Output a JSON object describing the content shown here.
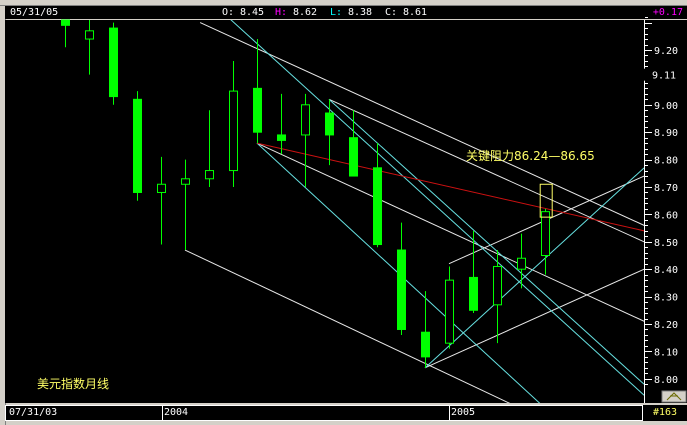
{
  "header": {
    "date": "05/31/05",
    "open_label": "O:",
    "open": "8.45",
    "high_label": "H:",
    "high": "8.62",
    "low_label": "L:",
    "low": "8.38",
    "close_label": "C:",
    "close": "8.61",
    "change": "+0.17"
  },
  "footer": {
    "start_date": "07/31/03",
    "year_labels": [
      "2004",
      "2005"
    ],
    "bar_count": "#163"
  },
  "colors": {
    "background": "#000000",
    "candle": "#00ff00",
    "trendline_white": "#e8e8e8",
    "trendline_cyan": "#66e0e0",
    "trendline_red": "#cc1111",
    "annotation": "#ffff66",
    "high_label": "#ff00ff",
    "low_label": "#00ffff",
    "change": "#ff00ff"
  },
  "chart_data": {
    "type": "candlestick",
    "title": "美元指数月线",
    "annotation": "关键阻力86.24—86.65",
    "y_axis_side": "right",
    "ylim": [
      7.98,
      9.31
    ],
    "y_ticks": [
      "9.20",
      "9.00",
      "8.90",
      "8.80",
      "8.70",
      "8.60",
      "8.50",
      "8.40",
      "8.30",
      "8.20",
      "8.10",
      "8.00"
    ],
    "y_tick_values": [
      9.2,
      9.0,
      8.9,
      8.8,
      8.7,
      8.6,
      8.5,
      8.4,
      8.3,
      8.2,
      8.1,
      8.0
    ],
    "current_marker": "9.11",
    "current_marker_value": 9.11,
    "grid": false,
    "candles": [
      {
        "o": 9.31,
        "h": 9.33,
        "l": 9.21,
        "c": 9.29
      },
      {
        "o": 9.24,
        "h": 9.31,
        "l": 9.11,
        "c": 9.27
      },
      {
        "o": 9.28,
        "h": 9.3,
        "l": 9.0,
        "c": 9.03
      },
      {
        "o": 9.02,
        "h": 9.05,
        "l": 8.65,
        "c": 8.68
      },
      {
        "o": 8.68,
        "h": 8.81,
        "l": 8.49,
        "c": 8.71
      },
      {
        "o": 8.71,
        "h": 8.8,
        "l": 8.47,
        "c": 8.73
      },
      {
        "o": 8.73,
        "h": 8.98,
        "l": 8.7,
        "c": 8.76
      },
      {
        "o": 8.76,
        "h": 9.16,
        "l": 8.7,
        "c": 9.05
      },
      {
        "o": 9.06,
        "h": 9.24,
        "l": 8.86,
        "c": 8.9
      },
      {
        "o": 8.89,
        "h": 9.04,
        "l": 8.82,
        "c": 8.87
      },
      {
        "o": 8.89,
        "h": 9.04,
        "l": 8.7,
        "c": 9.0
      },
      {
        "o": 8.97,
        "h": 9.02,
        "l": 8.78,
        "c": 8.89
      },
      {
        "o": 8.88,
        "h": 8.98,
        "l": 8.74,
        "c": 8.74
      },
      {
        "o": 8.77,
        "h": 8.86,
        "l": 8.48,
        "c": 8.49
      },
      {
        "o": 8.47,
        "h": 8.57,
        "l": 8.16,
        "c": 8.18
      },
      {
        "o": 8.17,
        "h": 8.32,
        "l": 8.04,
        "c": 8.08
      },
      {
        "o": 8.13,
        "h": 8.41,
        "l": 8.11,
        "c": 8.36
      },
      {
        "o": 8.37,
        "h": 8.54,
        "l": 8.24,
        "c": 8.25
      },
      {
        "o": 8.27,
        "h": 8.47,
        "l": 8.13,
        "c": 8.41
      },
      {
        "o": 8.4,
        "h": 8.53,
        "l": 8.33,
        "c": 8.44
      },
      {
        "o": 8.45,
        "h": 8.62,
        "l": 8.38,
        "c": 8.61
      }
    ],
    "trendlines": [
      {
        "color": "white",
        "from": [
          5.63,
          9.3
        ],
        "to": [
          24.13,
          8.56
        ]
      },
      {
        "color": "white",
        "from": [
          11,
          9.02
        ],
        "to": [
          24.13,
          8.5
        ]
      },
      {
        "color": "white",
        "from": [
          8,
          8.86
        ],
        "to": [
          24.13,
          8.21
        ]
      },
      {
        "color": "white",
        "from": [
          5,
          8.47
        ],
        "to": [
          18.54,
          7.91
        ]
      },
      {
        "color": "white",
        "from": [
          15,
          8.04
        ],
        "to": [
          24.13,
          8.4
        ]
      },
      {
        "color": "white",
        "from": [
          16,
          8.42
        ],
        "to": [
          24.13,
          8.74
        ]
      },
      {
        "color": "cyan",
        "from": [
          6.79,
          9.32
        ],
        "to": [
          24.13,
          7.94
        ]
      },
      {
        "color": "cyan",
        "from": [
          11,
          9.02
        ],
        "to": [
          24.13,
          7.98
        ]
      },
      {
        "color": "cyan",
        "from": [
          8,
          8.86
        ],
        "to": [
          19.79,
          7.91
        ]
      },
      {
        "color": "cyan",
        "from": [
          15,
          8.04
        ],
        "to": [
          24.13,
          8.77
        ]
      },
      {
        "color": "red",
        "from": [
          8,
          8.86
        ],
        "to": [
          24.13,
          8.54
        ]
      }
    ],
    "resistance_box": {
      "from_index": 19.8,
      "to_index": 20.3,
      "top": 8.71,
      "bottom": 8.59
    }
  }
}
